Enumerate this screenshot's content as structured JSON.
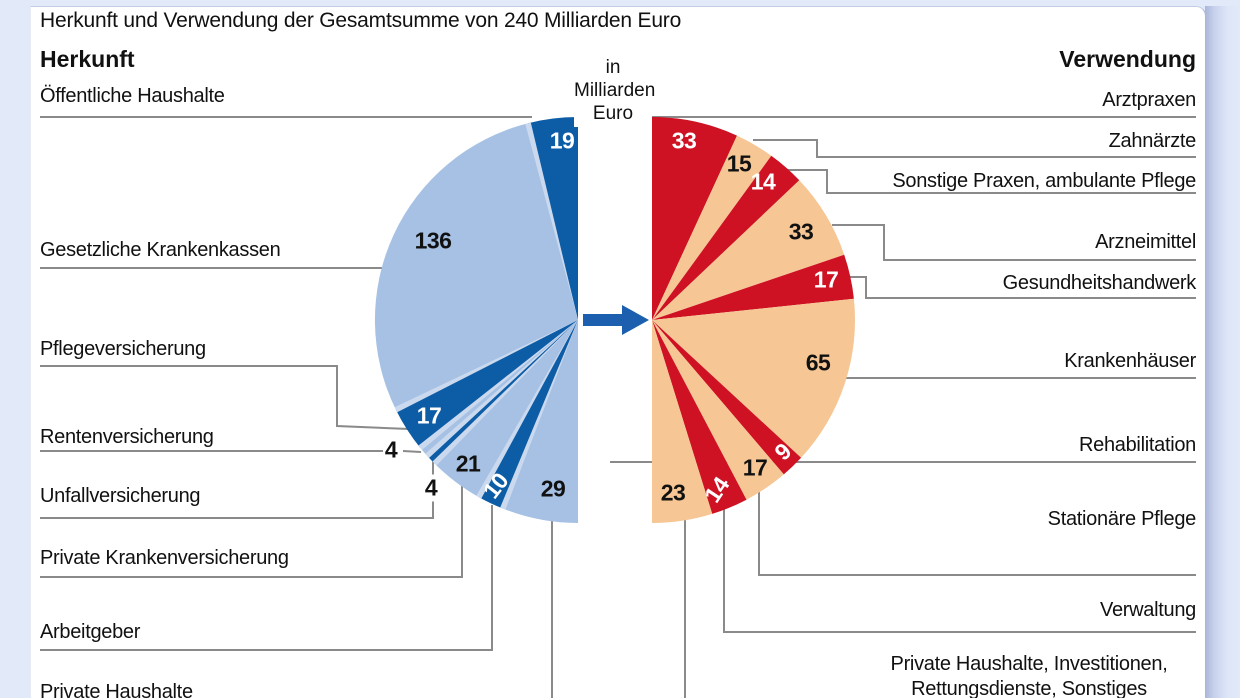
{
  "title": "Herkunft und Verwendung der Gesamtsumme von 240 Milliarden Euro",
  "unit_note_lines": "in\nMilliarden\nEuro",
  "chart_data": {
    "type": "pie",
    "subtype": "double-half-pie-fan",
    "total": 240,
    "unit": "Milliarden Euro",
    "legend_position": "none",
    "left": {
      "header": "Herkunft",
      "colors": {
        "dark": "#0d5ca6",
        "light": "#a6c1e3",
        "separator": "#cbd9ef"
      },
      "slices": [
        {
          "label": "Öffentliche Haushalte",
          "value": 19,
          "tone": "dark"
        },
        {
          "label": "Gesetzliche Krankenkassen",
          "value": 136,
          "tone": "light"
        },
        {
          "label": "Pflegeversicherung",
          "value": 17,
          "tone": "dark"
        },
        {
          "label": "Rentenversicherung",
          "value": 4,
          "tone": "light"
        },
        {
          "label": "Unfallversicherung",
          "value": 4,
          "tone": "dark"
        },
        {
          "label": "Private Krankenversicherung",
          "value": 21,
          "tone": "light"
        },
        {
          "label": "Arbeitgeber",
          "value": 10,
          "tone": "dark"
        },
        {
          "label": "Private Haushalte",
          "value": 29,
          "tone": "light"
        }
      ]
    },
    "right": {
      "header": "Verwendung",
      "colors": {
        "dark": "#ce1123",
        "light": "#f6c795"
      },
      "slices": [
        {
          "label": "Arztpraxen",
          "value": 33,
          "tone": "dark"
        },
        {
          "label": "Zahnärzte",
          "value": 15,
          "tone": "light"
        },
        {
          "label": "Sonstige Praxen, ambulante Pflege",
          "value": 14,
          "tone": "dark"
        },
        {
          "label": "Arzneimittel",
          "value": 33,
          "tone": "light"
        },
        {
          "label": "Gesundheitshandwerk",
          "value": 17,
          "tone": "dark"
        },
        {
          "label": "Krankenhäuser",
          "value": 65,
          "tone": "light"
        },
        {
          "label": "Rehabilitation",
          "value": 9,
          "tone": "dark"
        },
        {
          "label": "Stationäre Pflege",
          "value": 17,
          "tone": "light"
        },
        {
          "label": "Verwaltung",
          "value": 14,
          "tone": "dark"
        },
        {
          "label": "Private Haushalte, Investitionen,\nRettungsdienste, Sonstiges",
          "value": 23,
          "tone": "light"
        }
      ]
    },
    "arrow_color": "#1b5fae",
    "leader_line_color": "#8a8a8a",
    "text_color": "#111111"
  }
}
